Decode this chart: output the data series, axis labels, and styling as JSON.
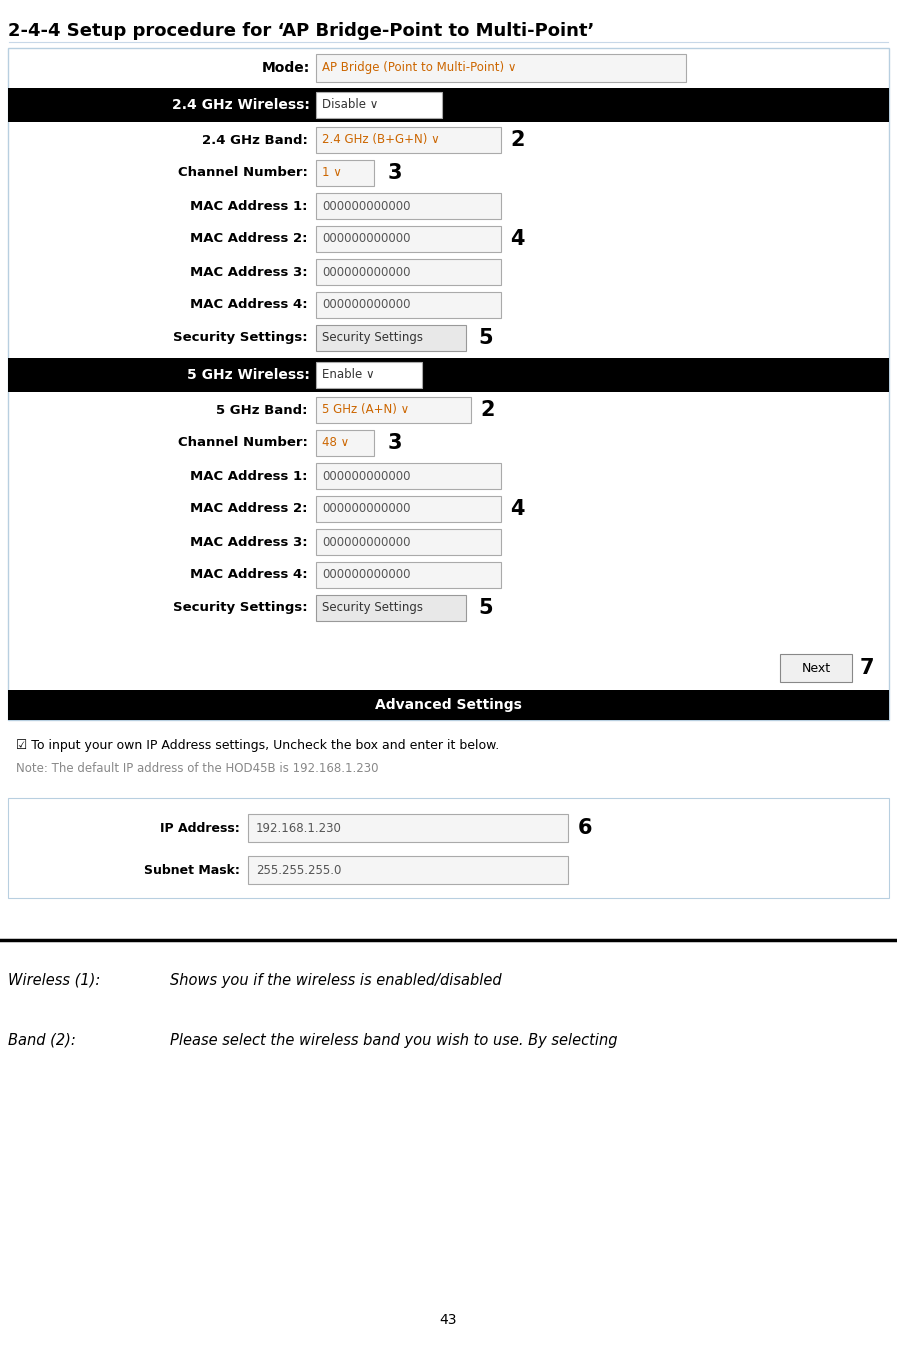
{
  "title": "2-4-4 Setup procedure for ‘AP Bridge-Point to Multi-Point’",
  "bg_color": "#ffffff",
  "mode_label": "Mode:",
  "mode_value": "AP Bridge (Point to Multi-Point) ∨",
  "wireless_24_label": "2.4 GHz Wireless:",
  "wireless_24_value": "Disable ∨",
  "band_24_label": "2.4 GHz Band:",
  "band_24_value": "2.4 GHz (B+G+N) ∨",
  "channel_label": "Channel Number:",
  "channel_24_value": "1 ∨",
  "mac1_label": "MAC Address 1:",
  "mac1_value": "000000000000",
  "mac2_label": "MAC Address 2:",
  "mac2_value": "000000000000",
  "mac3_label": "MAC Address 3:",
  "mac3_value": "000000000000",
  "mac4_label": "MAC Address 4:",
  "mac4_value": "000000000000",
  "security_label": "Security Settings:",
  "security_value": "Security Settings",
  "wireless_5_label": "5 GHz Wireless:",
  "wireless_5_value": "Enable ∨",
  "band_5_label": "5 GHz Band:",
  "band_5_value": "5 GHz (A+N) ∨",
  "channel_5_value": "48 ∨",
  "next_label": "Next",
  "advanced_label": "Advanced Settings",
  "checkbox_text": "☑ To input your own IP Address settings, Uncheck the box and enter it below.",
  "note_text": "Note: The default IP address of the HOD45B is 192.168.1.230",
  "ip_label": "IP Address:",
  "ip_value": "192.168.1.230",
  "subnet_label": "Subnet Mask:",
  "subnet_value": "255.255.255.0",
  "page_number": "43",
  "footer_wireless_label": "Wireless (1):",
  "footer_wireless_text": "Shows you if the wireless is enabled/disabled",
  "footer_band_label": "Band (2):",
  "footer_band_text": "Please select the wireless band you wish to use. By selecting"
}
